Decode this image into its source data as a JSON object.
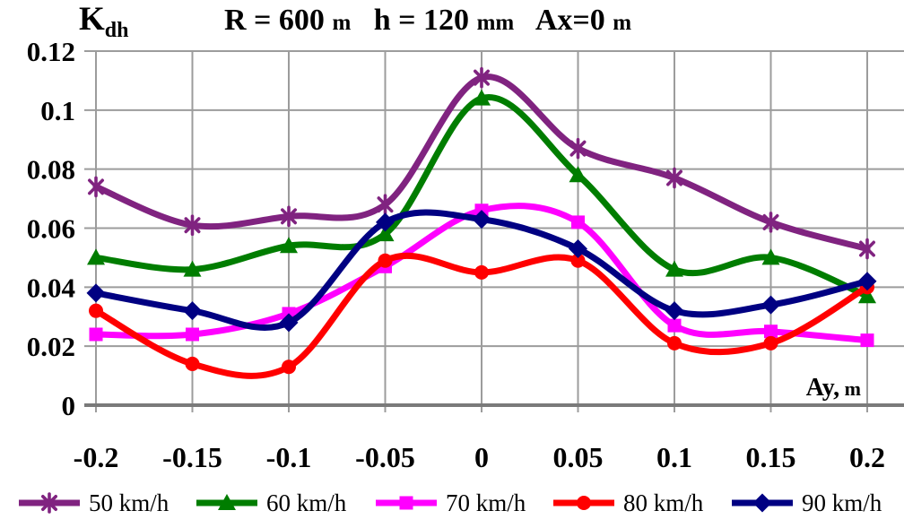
{
  "chart_data": {
    "type": "line",
    "title": "R = 600 m  h = 120 mm  Ax=0 m",
    "title_segments": [
      {
        "text": "R = 600 ",
        "unit": false
      },
      {
        "text": "m",
        "unit": true
      },
      {
        "text": "   h = 120 ",
        "unit": false
      },
      {
        "text": "mm",
        "unit": true
      },
      {
        "text": "   Ax=0 ",
        "unit": false
      },
      {
        "text": "m",
        "unit": true
      }
    ],
    "y_axis_label": {
      "main": "K",
      "sub": "dh"
    },
    "x_axis_label": {
      "main": "Ay,",
      "unit": " m"
    },
    "x": [
      -0.2,
      -0.15,
      -0.1,
      -0.05,
      0,
      0.05,
      0.1,
      0.15,
      0.2
    ],
    "x_tick_labels": [
      "-0.2",
      "-0.15",
      "-0.1",
      "-0.05",
      "0",
      "0.05",
      "0.1",
      "0.15",
      "0.2"
    ],
    "y_ticks": [
      0,
      0.02,
      0.04,
      0.06,
      0.08,
      0.1,
      0.12
    ],
    "y_tick_labels": [
      "0",
      "0.02",
      "0.04",
      "0.06",
      "0.08",
      "0.1",
      "0.12"
    ],
    "xlim": [
      -0.2,
      0.2
    ],
    "ylim": [
      0,
      0.12
    ],
    "grid": true,
    "line_style": "smooth",
    "legend_position": "bottom",
    "series": [
      {
        "name": "50 km/h",
        "color": "#802380",
        "marker": "asterisk",
        "values": [
          0.074,
          0.061,
          0.064,
          0.068,
          0.111,
          0.087,
          0.077,
          0.062,
          0.053
        ]
      },
      {
        "name": "60 km/h",
        "color": "#007D00",
        "marker": "triangle",
        "values": [
          0.05,
          0.046,
          0.054,
          0.058,
          0.104,
          0.078,
          0.046,
          0.05,
          0.037
        ]
      },
      {
        "name": "70 km/h",
        "color": "#FF00FF",
        "marker": "square",
        "values": [
          0.024,
          0.024,
          0.031,
          0.047,
          0.066,
          0.062,
          0.027,
          0.025,
          0.022
        ]
      },
      {
        "name": "80 km/h",
        "color": "#FF0000",
        "marker": "circle",
        "values": [
          0.032,
          0.014,
          0.013,
          0.049,
          0.045,
          0.049,
          0.021,
          0.021,
          0.04
        ]
      },
      {
        "name": "90 km/h",
        "color": "#000082",
        "marker": "diamond",
        "values": [
          0.038,
          0.032,
          0.028,
          0.062,
          0.063,
          0.053,
          0.032,
          0.034,
          0.042
        ]
      }
    ],
    "colors": {
      "grid": "#9C9C9C",
      "axis": "#7A7A7A",
      "text": "#000000",
      "background": "#FFFFFF"
    }
  }
}
